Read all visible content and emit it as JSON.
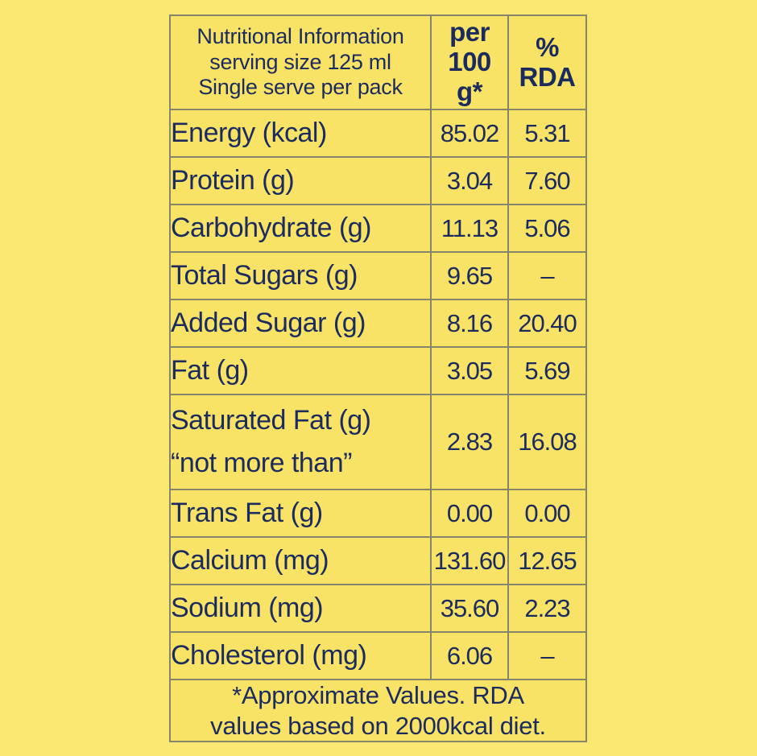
{
  "colors": {
    "page_background": "#fbe873",
    "cell_background": "#f8e367",
    "border": "#85856c",
    "text": "#1c2b5e"
  },
  "table": {
    "header": {
      "col1": "Nutritional Information\nserving size 125 ml\nSingle serve per pack",
      "col2": "per\n100\ng*",
      "col3": "%\nRDA"
    },
    "rows": [
      {
        "label": "Energy (kcal)",
        "per100": "85.02",
        "rda": "5.31"
      },
      {
        "label": "Protein (g)",
        "per100": "3.04",
        "rda": "7.60"
      },
      {
        "label": "Carbohydrate (g)",
        "per100": "11.13",
        "rda": "5.06"
      },
      {
        "label": "Total Sugars (g)",
        "per100": "9.65",
        "rda": "–"
      },
      {
        "label": "Added Sugar (g)",
        "per100": "8.16",
        "rda": "20.40"
      },
      {
        "label": "Fat (g)",
        "per100": "3.05",
        "rda": "5.69"
      },
      {
        "label": "Saturated Fat (g)\n“not more than”",
        "per100": "2.83",
        "rda": "16.08"
      },
      {
        "label": "Trans Fat (g)",
        "per100": "0.00",
        "rda": "0.00"
      },
      {
        "label": "Calcium (mg)",
        "per100": "131.60",
        "rda": "12.65"
      },
      {
        "label": "Sodium (mg)",
        "per100": "35.60",
        "rda": "2.23"
      },
      {
        "label": "Cholesterol (mg)",
        "per100": "6.06",
        "rda": "–"
      }
    ],
    "footnote": "*Approximate Values. RDA\nvalues based on 2000kcal diet."
  }
}
